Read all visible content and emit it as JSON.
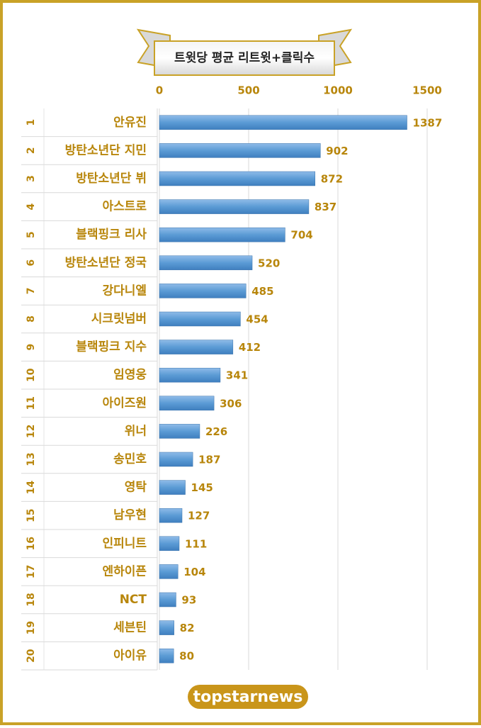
{
  "chart_data": {
    "type": "bar",
    "orientation": "horizontal",
    "title": "트윗당 평균 리트윗+클릭수",
    "ranks": [
      "1",
      "2",
      "3",
      "4",
      "5",
      "6",
      "7",
      "8",
      "9",
      "10",
      "11",
      "12",
      "13",
      "14",
      "15",
      "16",
      "17",
      "18",
      "19",
      "20"
    ],
    "categories": [
      "안유진",
      "방탄소년단 지민",
      "방탄소년단 뷔",
      "아스트로",
      "블랙핑크 리사",
      "방탄소년단 정국",
      "강다니엘",
      "시크릿넘버",
      "블랙핑크 지수",
      "임영웅",
      "아이즈원",
      "위너",
      "송민호",
      "영탁",
      "남우현",
      "인피니트",
      "엔하이픈",
      "NCT",
      "세븐틴",
      "아이유"
    ],
    "values": [
      1387,
      902,
      872,
      837,
      704,
      520,
      485,
      454,
      412,
      341,
      306,
      226,
      187,
      145,
      127,
      111,
      104,
      93,
      82,
      80
    ],
    "color": "#5b9bd5",
    "xlim": [
      0,
      1500
    ],
    "xticks": [
      0,
      500,
      1000,
      1500
    ],
    "grid": true,
    "logo": "topstarnews"
  }
}
